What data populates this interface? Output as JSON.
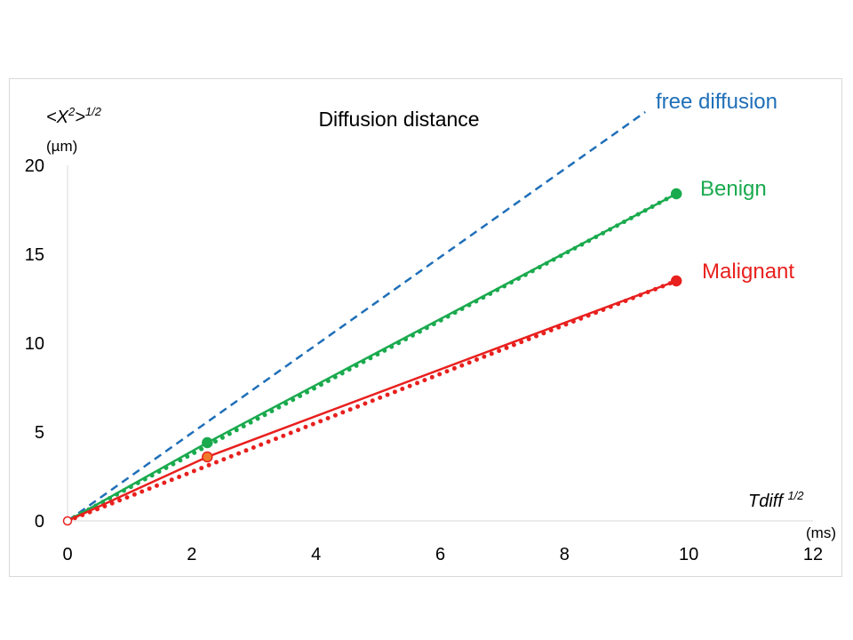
{
  "chart_data": {
    "type": "line",
    "title": "Diffusion distance",
    "ylabel_main": "<X",
    "ylabel_sup1": "2",
    "ylabel_mid": ">",
    "ylabel_sup2": "1/2",
    "yunit": "(µm)",
    "xlabel_main": "Tdiff ",
    "xlabel_sup": "1/2",
    "xunit": "(ms)",
    "xlim": [
      0,
      12
    ],
    "ylim": [
      0,
      20
    ],
    "xticks": [
      0,
      2,
      4,
      6,
      8,
      10,
      12
    ],
    "yticks": [
      0,
      5,
      10,
      15,
      20
    ],
    "grid": false,
    "series": [
      {
        "name": "free diffusion",
        "color": "#1f6fb8",
        "style": "dashed",
        "points": [
          [
            0,
            0
          ],
          [
            9.3,
            23
          ]
        ]
      },
      {
        "name": "Benign",
        "color": "#1aaa4e",
        "style": "solid",
        "points": [
          [
            0,
            0
          ],
          [
            2.25,
            4.4
          ],
          [
            9.8,
            18.4
          ]
        ],
        "markers": [
          [
            2.25,
            4.4
          ],
          [
            9.8,
            18.4
          ]
        ],
        "fit": {
          "style": "dotted",
          "points": [
            [
              0,
              0
            ],
            [
              9.8,
              18.4
            ]
          ]
        }
      },
      {
        "name": "Malignant",
        "color": "#e8201e",
        "style": "solid",
        "points": [
          [
            0,
            0
          ],
          [
            2.25,
            3.6
          ],
          [
            9.8,
            13.5
          ]
        ],
        "markers": [
          [
            2.25,
            3.6
          ],
          [
            9.8,
            13.5
          ]
        ],
        "marker_first_fill": "#f07a2a",
        "fit": {
          "style": "dotted",
          "points": [
            [
              0,
              0
            ],
            [
              9.8,
              13.5
            ]
          ]
        }
      }
    ]
  }
}
